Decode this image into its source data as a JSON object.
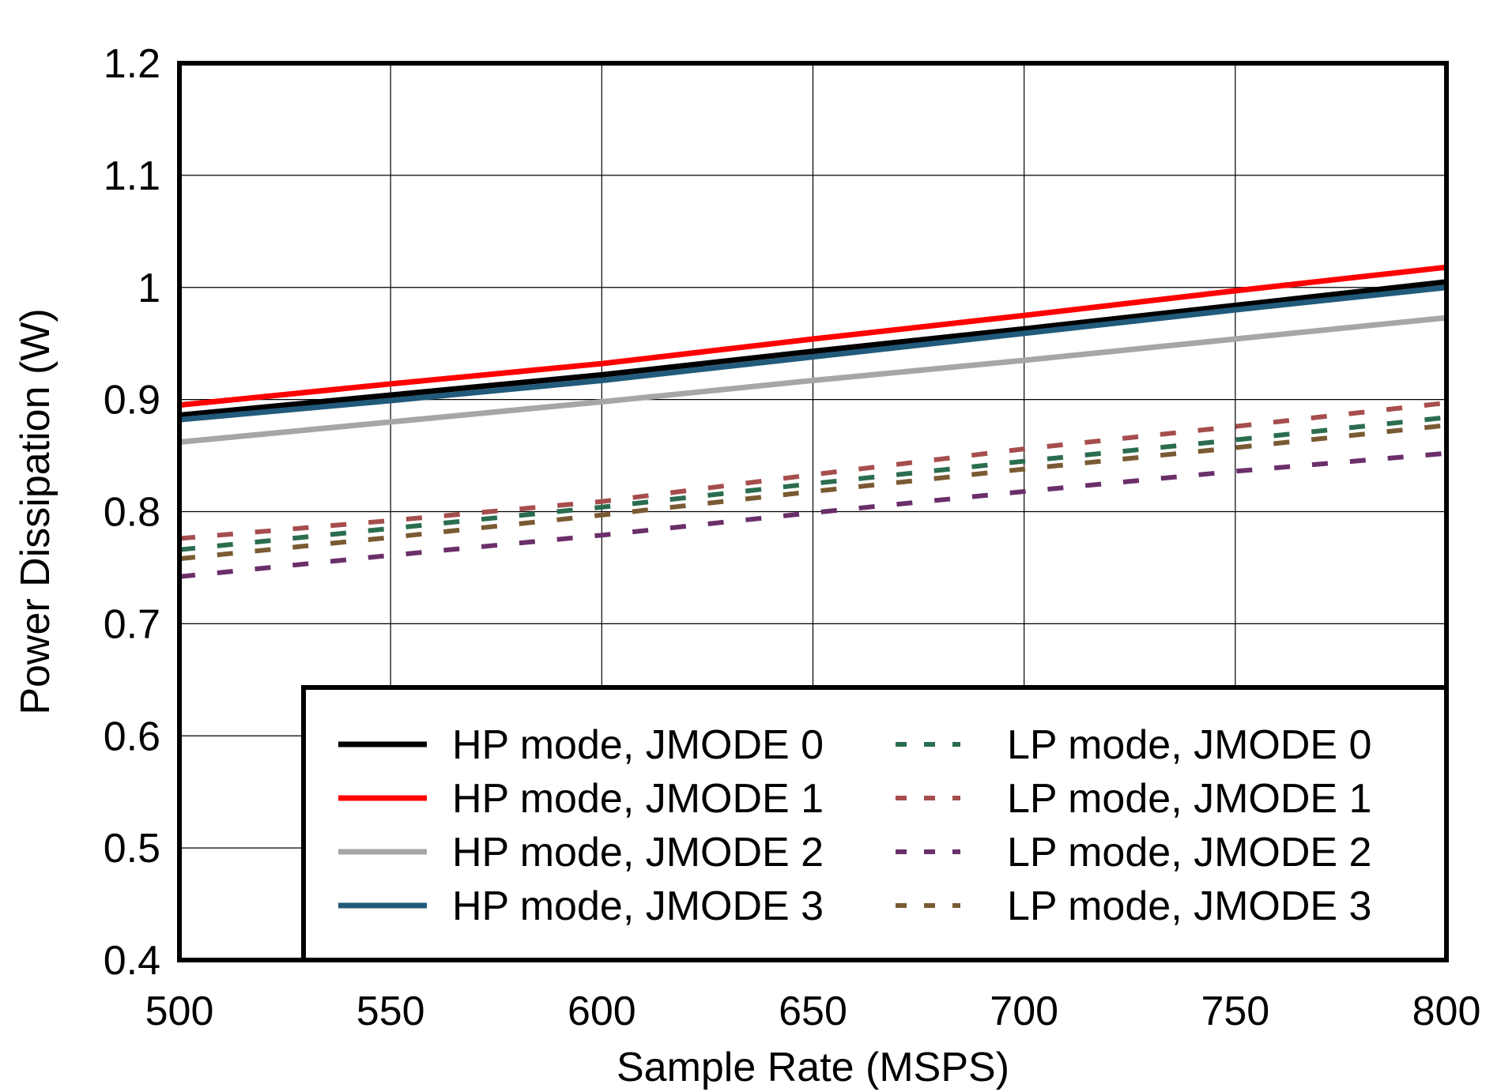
{
  "chart_data": {
    "type": "line",
    "xlabel": "Sample Rate (MSPS)",
    "ylabel": "Power Dissipation (W)",
    "xlim": [
      500,
      800
    ],
    "ylim": [
      0.4,
      1.2
    ],
    "xticks": [
      "500",
      "550",
      "600",
      "650",
      "700",
      "750",
      "800"
    ],
    "yticks": [
      "0.4",
      "0.5",
      "0.6",
      "0.7",
      "0.8",
      "0.9",
      "1",
      "1.1",
      "1.2"
    ],
    "grid": true,
    "legend_position": "bottom-right",
    "x": [
      500,
      550,
      600,
      650,
      700,
      750,
      800
    ],
    "series": [
      {
        "name": "HP mode, JMODE 0",
        "style": "solid",
        "color": "#000000",
        "values": [
          0.886,
          0.904,
          0.922,
          0.943,
          0.963,
          0.984,
          1.005
        ]
      },
      {
        "name": "HP mode, JMODE 1",
        "style": "solid",
        "color": "#ff0000",
        "values": [
          0.895,
          0.914,
          0.932,
          0.954,
          0.975,
          0.997,
          1.018
        ]
      },
      {
        "name": "HP mode, JMODE 2",
        "style": "solid",
        "color": "#a6a6a6",
        "values": [
          0.862,
          0.88,
          0.898,
          0.917,
          0.935,
          0.954,
          0.973
        ]
      },
      {
        "name": "HP mode, JMODE 3",
        "style": "solid",
        "color": "#215a7a",
        "values": [
          0.882,
          0.899,
          0.917,
          0.938,
          0.959,
          0.98,
          1.0
        ]
      },
      {
        "name": "LP mode, JMODE 0",
        "style": "dashed",
        "color": "#2a6d4f",
        "values": [
          0.766,
          0.785,
          0.804,
          0.825,
          0.845,
          0.864,
          0.884
        ]
      },
      {
        "name": "LP mode, JMODE 1",
        "style": "dashed",
        "color": "#a64d4d",
        "values": [
          0.776,
          0.792,
          0.809,
          0.833,
          0.856,
          0.876,
          0.897
        ]
      },
      {
        "name": "LP mode, JMODE 2",
        "style": "dashed",
        "color": "#6a2f6a",
        "values": [
          0.742,
          0.761,
          0.779,
          0.799,
          0.818,
          0.836,
          0.852
        ]
      },
      {
        "name": "LP mode, JMODE 3",
        "style": "dashed",
        "color": "#7a5a33",
        "values": [
          0.758,
          0.777,
          0.797,
          0.818,
          0.838,
          0.857,
          0.877
        ]
      }
    ]
  }
}
